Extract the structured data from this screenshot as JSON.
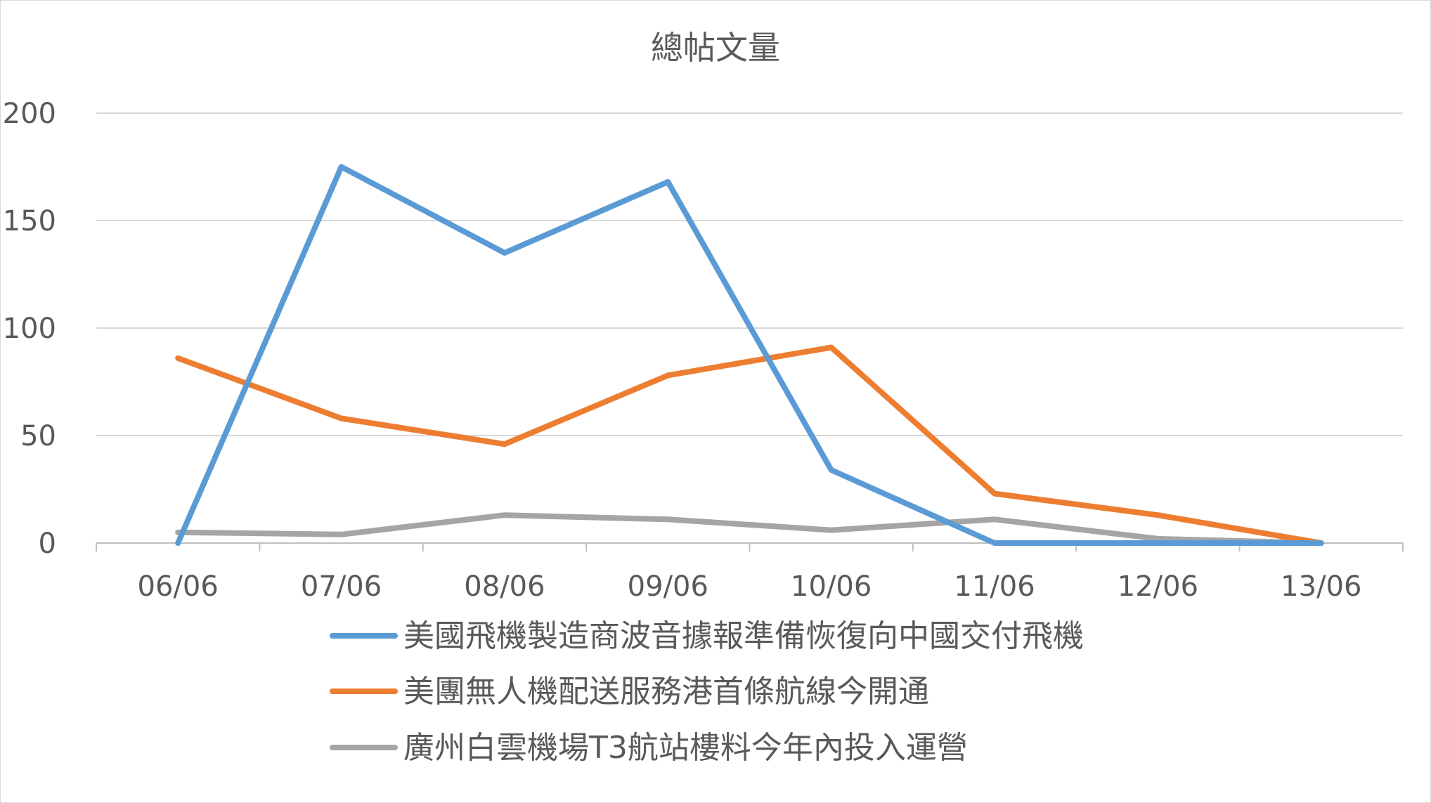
{
  "chart_data": {
    "type": "line",
    "title": "總帖文量",
    "xlabel": "",
    "ylabel": "",
    "categories": [
      "06/06",
      "07/06",
      "08/06",
      "09/06",
      "10/06",
      "11/06",
      "12/06",
      "13/06"
    ],
    "ylim": [
      0,
      200
    ],
    "yticks": [
      0,
      50,
      100,
      150,
      200
    ],
    "grid": true,
    "legend_position": "bottom",
    "series": [
      {
        "name": "美國飛機製造商波音據報準備恢復向中國交付飛機",
        "color": "#5b9bd5",
        "values": [
          0,
          175,
          135,
          168,
          34,
          0,
          0,
          0
        ]
      },
      {
        "name": "美團無人機配送服務港首條航線今開通",
        "color": "#ed7d31",
        "values": [
          86,
          58,
          46,
          78,
          91,
          23,
          13,
          0
        ]
      },
      {
        "name": "廣州白雲機場T3航站樓料今年內投入運營",
        "color": "#a5a5a5",
        "values": [
          5,
          4,
          13,
          11,
          6,
          11,
          2,
          0
        ]
      }
    ]
  }
}
